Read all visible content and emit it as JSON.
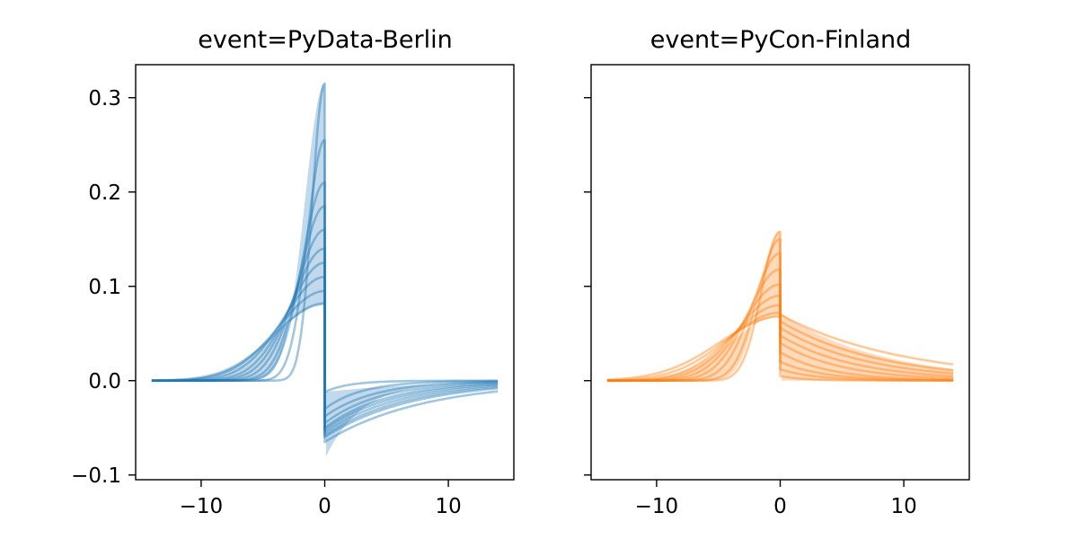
{
  "chart_data": [
    {
      "type": "line",
      "title": "event=PyData-Berlin",
      "xlabel": "",
      "ylabel": "",
      "xlim": [
        -15.3,
        15.3
      ],
      "ylim": [
        -0.105,
        0.335
      ],
      "xticks": [
        -10,
        0,
        10
      ],
      "xtick_labels": [
        "−10",
        "0",
        "10"
      ],
      "yticks": [
        -0.1,
        0.0,
        0.1,
        0.2,
        0.3
      ],
      "ytick_labels": [
        "−0.1",
        "0.0",
        "0.1",
        "0.2",
        "0.3"
      ],
      "show_ytick_labels": true,
      "color": "#1f77b4",
      "grid": false,
      "legend": "none",
      "x_range": [
        -14,
        14
      ],
      "band": {
        "peak_low": 0.08,
        "peak_high": 0.315,
        "tail_low": -0.083,
        "tail_high": -0.012
      },
      "series": [
        {
          "values": {
            "peak": 0.315,
            "width": 1.0,
            "tail": -0.012,
            "tau": 2.0
          }
        },
        {
          "values": {
            "peak": 0.255,
            "width": 1.4,
            "tail": -0.03,
            "tau": 3.0
          }
        },
        {
          "values": {
            "peak": 0.21,
            "width": 1.8,
            "tail": -0.038,
            "tau": 4.0
          }
        },
        {
          "values": {
            "peak": 0.185,
            "width": 2.0,
            "tail": -0.045,
            "tau": 4.5
          }
        },
        {
          "values": {
            "peak": 0.16,
            "width": 2.3,
            "tail": -0.05,
            "tau": 5.0
          }
        },
        {
          "values": {
            "peak": 0.14,
            "width": 2.6,
            "tail": -0.052,
            "tau": 5.5
          }
        },
        {
          "values": {
            "peak": 0.125,
            "width": 2.9,
            "tail": -0.055,
            "tau": 6.0
          }
        },
        {
          "values": {
            "peak": 0.11,
            "width": 3.3,
            "tail": -0.058,
            "tau": 6.5
          }
        },
        {
          "values": {
            "peak": 0.095,
            "width": 3.7,
            "tail": -0.06,
            "tau": 7.0
          }
        },
        {
          "values": {
            "peak": 0.082,
            "width": 4.0,
            "tail": -0.065,
            "tau": 8.0
          }
        }
      ]
    },
    {
      "type": "line",
      "title": "event=PyCon-Finland",
      "xlabel": "",
      "ylabel": "",
      "xlim": [
        -15.3,
        15.3
      ],
      "ylim": [
        -0.105,
        0.335
      ],
      "xticks": [
        -10,
        0,
        10
      ],
      "xtick_labels": [
        "−10",
        "0",
        "10"
      ],
      "yticks": [
        -0.1,
        0.0,
        0.1,
        0.2,
        0.3
      ],
      "ytick_labels": [
        "",
        "",
        "",
        "",
        ""
      ],
      "show_ytick_labels": false,
      "color": "#ff7f0e",
      "grid": false,
      "legend": "none",
      "x_range": [
        -14,
        14
      ],
      "band": {
        "peak_low": 0.068,
        "peak_high": 0.158,
        "tail_low": 0.0,
        "tail_high": 0.072
      },
      "series": [
        {
          "values": {
            "peak": 0.158,
            "width": 1.5,
            "tail": 0.005,
            "tau": 2.0
          }
        },
        {
          "values": {
            "peak": 0.15,
            "width": 1.8,
            "tail": 0.012,
            "tau": 3.0
          }
        },
        {
          "values": {
            "peak": 0.135,
            "width": 2.2,
            "tail": 0.02,
            "tau": 3.5
          }
        },
        {
          "values": {
            "peak": 0.118,
            "width": 2.6,
            "tail": 0.03,
            "tau": 4.0
          }
        },
        {
          "values": {
            "peak": 0.102,
            "width": 3.0,
            "tail": 0.04,
            "tau": 5.0
          }
        },
        {
          "values": {
            "peak": 0.09,
            "width": 3.4,
            "tail": 0.048,
            "tau": 6.0
          }
        },
        {
          "values": {
            "peak": 0.08,
            "width": 3.8,
            "tail": 0.056,
            "tau": 7.0
          }
        },
        {
          "values": {
            "peak": 0.072,
            "width": 4.3,
            "tail": 0.063,
            "tau": 8.0
          }
        },
        {
          "values": {
            "peak": 0.068,
            "width": 4.8,
            "tail": 0.07,
            "tau": 10.0
          }
        }
      ]
    }
  ]
}
